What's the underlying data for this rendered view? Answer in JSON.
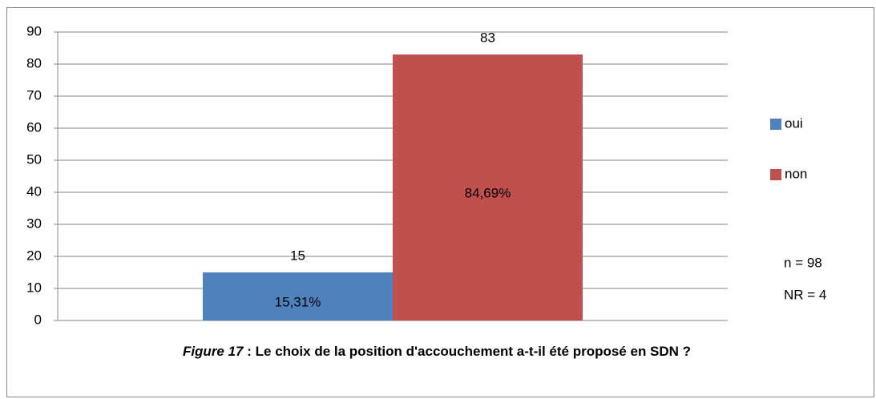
{
  "chart_data": {
    "type": "bar",
    "title_prefix": "Figure 17",
    "title": " : Le choix de la position d'accouchement a-t-il été proposé en SDN ?",
    "categories": [
      null
    ],
    "series": [
      {
        "name": "oui",
        "color": "#4f81bd",
        "values": [
          15
        ],
        "shares": [
          {
            "value": 15.31,
            "label": "15,31%"
          }
        ]
      },
      {
        "name": "non",
        "color": "#c0504d",
        "values": [
          83
        ],
        "shares": [
          {
            "value": 84.69,
            "label": "84,69%"
          }
        ]
      }
    ],
    "ylim": [
      0,
      90
    ],
    "yticks": [
      0,
      10,
      20,
      30,
      40,
      50,
      60,
      70,
      80,
      90
    ],
    "grid": true,
    "legend": "right",
    "annotations": [
      "n = 98",
      "NR = 4"
    ]
  }
}
